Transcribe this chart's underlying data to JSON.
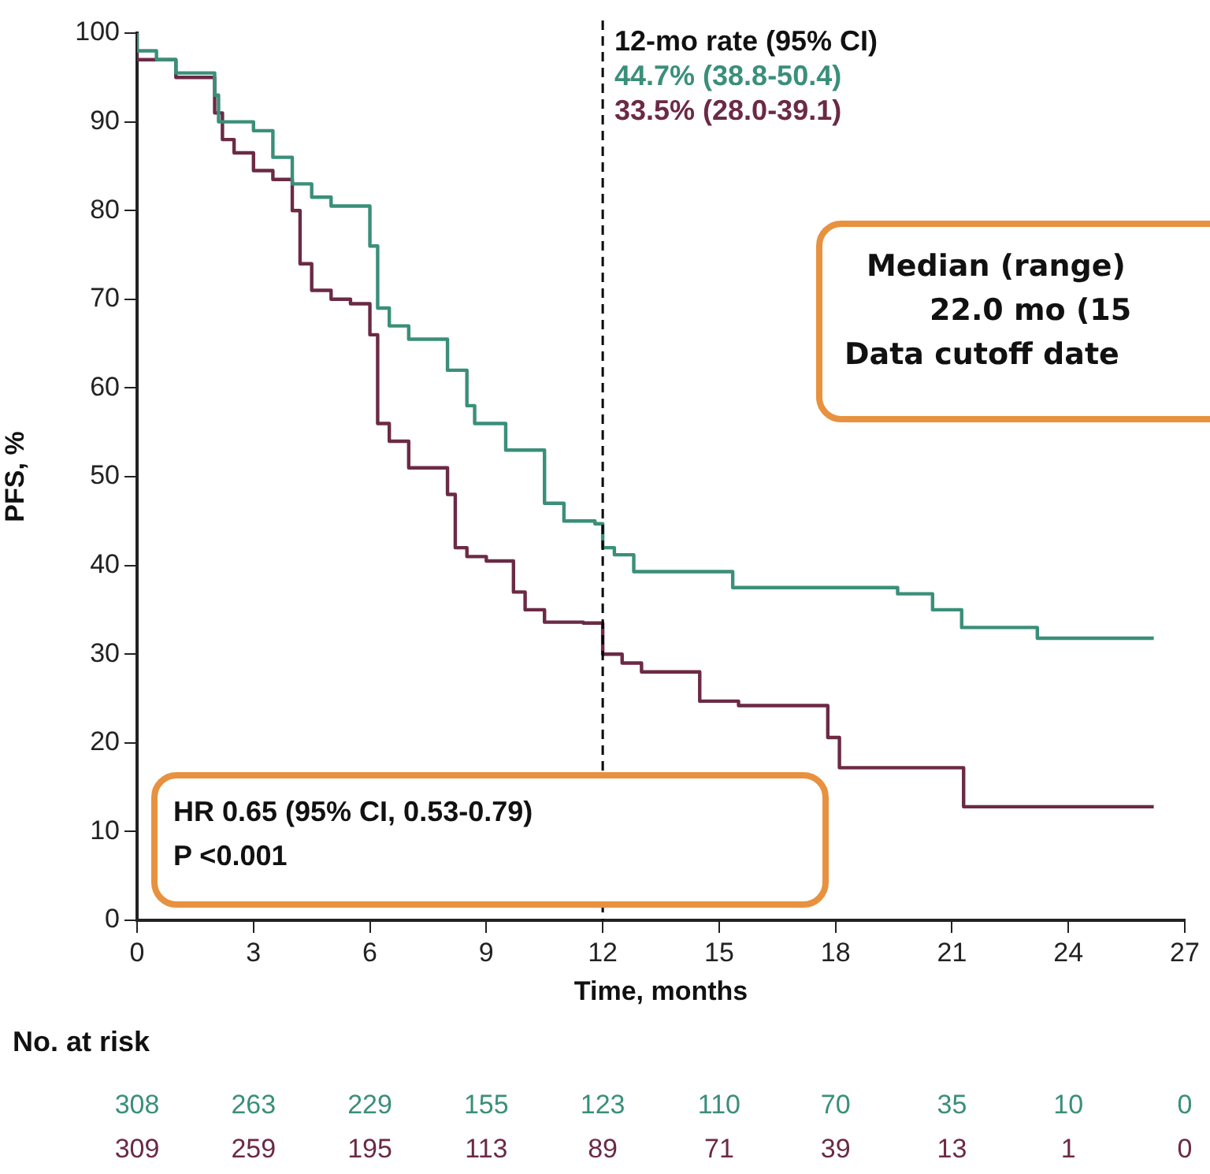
{
  "chart_data": {
    "type": "step",
    "xlabel": "Time, months",
    "ylabel": "PFS, %",
    "xlim": [
      0,
      27
    ],
    "xticks": [
      0,
      3,
      6,
      9,
      12,
      15,
      18,
      21,
      24,
      27
    ],
    "ylim": [
      0,
      100
    ],
    "yticks": [
      0,
      10,
      20,
      30,
      40,
      50,
      60,
      70,
      80,
      90,
      100
    ],
    "grid": false,
    "legend": false,
    "marker": "none",
    "line_style": "solid",
    "series": [
      {
        "color": "#3a8f7a",
        "x": [
          0,
          0.5,
          1,
          2,
          2.1,
          3,
          3.5,
          4,
          4.5,
          5,
          6,
          6.2,
          6.5,
          7,
          8,
          8.5,
          8.7,
          9.5,
          10.5,
          11,
          11.8,
          12,
          12.3,
          12.8,
          15.35,
          19.6,
          20.5,
          21.25,
          23.2,
          23.4,
          26.2
        ],
        "values": [
          100,
          98,
          97,
          95.5,
          93,
          90,
          89,
          86,
          83,
          81.5,
          80.5,
          76,
          69,
          67,
          65.5,
          62,
          58,
          56,
          53,
          47,
          45,
          44.7,
          42,
          41.2,
          39.3,
          37.5,
          36.8,
          35,
          33,
          31.8,
          31.8
        ]
      },
      {
        "color": "#6b2a45",
        "x": [
          0,
          1,
          2,
          2.2,
          2.5,
          3,
          3.5,
          4,
          4.2,
          4.5,
          5,
          5.5,
          6,
          6.2,
          6.5,
          7,
          8,
          8.2,
          8.5,
          9,
          9.7,
          10,
          10.5,
          11.5,
          12,
          12.5,
          13,
          14.5,
          15.5,
          17.8,
          18.1,
          21.3,
          23.6,
          26.2
        ],
        "values": [
          100,
          97,
          95,
          91,
          88,
          86.5,
          84.5,
          83.5,
          80,
          74,
          71,
          70,
          69.5,
          66,
          56,
          54,
          51,
          48,
          42,
          41,
          40.5,
          37,
          35,
          33.6,
          33.5,
          30,
          29,
          28,
          24.7,
          24.2,
          20.6,
          17.2,
          12.8,
          12.8
        ]
      }
    ],
    "ref_lines": [
      {
        "axis": "x",
        "value": 12,
        "line_style": "dashed",
        "color": "#000000"
      }
    ],
    "annotations": [
      "12-mo rate (95% CI)",
      "44.7% (38.8-50.4)",
      "33.5% (28.0-39.1)",
      "Median (range)",
      "22.0 mo (15",
      "Data cutoff date",
      "HR 0.65 (95% CI, 0.53-0.79)",
      "P <0.001",
      "No. at risk",
      "308",
      "263",
      "229",
      "155",
      "123",
      "110",
      "70",
      "35",
      "10",
      "0",
      "309",
      "259",
      "195",
      "113",
      "89",
      "71",
      "39",
      "13",
      "1",
      "0"
    ]
  }
}
